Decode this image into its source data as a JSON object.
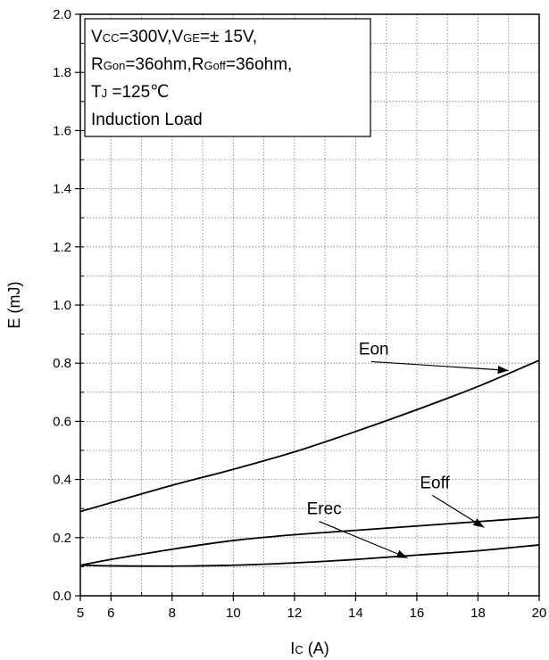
{
  "chart_data": {
    "type": "line",
    "xlabel": {
      "main": "I",
      "sub": "C",
      "unit": " (A)"
    },
    "ylabel": "E (mJ)",
    "xlim": [
      5,
      20
    ],
    "ylim": [
      0.0,
      2.0
    ],
    "x_ticks": [
      5,
      6,
      8,
      10,
      12,
      14,
      16,
      18,
      20
    ],
    "x_tick_labels": [
      "5",
      "6",
      "8",
      "10",
      "12",
      "14",
      "16",
      "18",
      "20"
    ],
    "y_ticks": [
      0.0,
      0.2,
      0.4,
      0.6,
      0.8,
      1.0,
      1.2,
      1.4,
      1.6,
      1.8,
      2.0
    ],
    "y_tick_labels": [
      "0.0",
      "0.2",
      "0.4",
      "0.6",
      "0.8",
      "1.0",
      "1.2",
      "1.4",
      "1.6",
      "1.8",
      "2.0"
    ],
    "grid": true,
    "series": [
      {
        "name": "Eon",
        "x": [
          5,
          6,
          8,
          10,
          12,
          14,
          16,
          18,
          20
        ],
        "y": [
          0.29,
          0.32,
          0.38,
          0.435,
          0.495,
          0.565,
          0.64,
          0.72,
          0.81
        ]
      },
      {
        "name": "Eoff",
        "x": [
          5,
          6,
          8,
          10,
          12,
          14,
          16,
          18,
          20
        ],
        "y": [
          0.105,
          0.125,
          0.16,
          0.19,
          0.21,
          0.225,
          0.24,
          0.255,
          0.27
        ]
      },
      {
        "name": "Erec",
        "x": [
          5,
          6,
          8,
          10,
          12,
          14,
          16,
          18,
          20
        ],
        "y": [
          0.105,
          0.103,
          0.102,
          0.105,
          0.113,
          0.125,
          0.14,
          0.155,
          0.175
        ]
      }
    ],
    "annotations": [
      {
        "label": "Eon",
        "text_at": [
          14.1,
          0.83
        ],
        "arrow_to": [
          19.0,
          0.775
        ]
      },
      {
        "label": "Eoff",
        "text_at": [
          16.1,
          0.37
        ],
        "arrow_to": [
          18.2,
          0.235
        ]
      },
      {
        "label": "Erec",
        "text_at": [
          12.4,
          0.28
        ],
        "arrow_to": [
          15.7,
          0.13
        ]
      }
    ],
    "conditions": [
      [
        {
          "t": "V"
        },
        {
          "t": "CC",
          "sub": true
        },
        {
          "t": "=300V,V"
        },
        {
          "t": "GE",
          "sub": true
        },
        {
          "t": "=± 15V,"
        }
      ],
      [
        {
          "t": "R"
        },
        {
          "t": "Gon",
          "sub": true
        },
        {
          "t": "=36ohm,R"
        },
        {
          "t": "Goff",
          "sub": true
        },
        {
          "t": "=36ohm,"
        }
      ],
      [
        {
          "t": "T"
        },
        {
          "t": "J",
          "sub": true
        },
        {
          "t": " =125℃"
        }
      ],
      [
        {
          "t": "Induction Load"
        }
      ]
    ]
  }
}
